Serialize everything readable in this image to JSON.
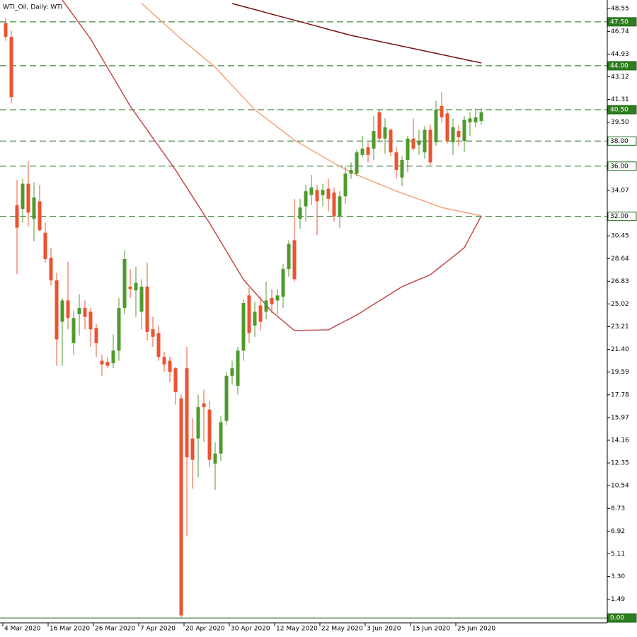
{
  "chart_data": {
    "type": "candlestick",
    "title": "WTI_Oil, Daily:  WTI",
    "categories": [
      "4 Mar 2020",
      null,
      null,
      null,
      null,
      null,
      null,
      null,
      "16 Mar 2020",
      null,
      null,
      null,
      null,
      null,
      null,
      null,
      "26 Mar 2020",
      null,
      null,
      null,
      null,
      null,
      null,
      null,
      "7 Apr 2020",
      null,
      null,
      null,
      null,
      null,
      null,
      null,
      "20 Apr 2020",
      null,
      null,
      null,
      null,
      null,
      null,
      null,
      "30 Apr 2020",
      null,
      null,
      null,
      null,
      null,
      null,
      null,
      "12 May 2020",
      null,
      null,
      null,
      null,
      null,
      null,
      null,
      "22 May 2020",
      null,
      null,
      null,
      null,
      null,
      null,
      null,
      "3 Jun 2020",
      null,
      null,
      null,
      null,
      null,
      null,
      null,
      "15 Jun 2020",
      null,
      null,
      null,
      null,
      null,
      null,
      null,
      "25 Jun 2020",
      null,
      null,
      null,
      null
    ],
    "open": [
      47.4,
      46.3,
      32.9,
      32.6,
      34.6,
      31.8,
      33.2,
      30.7,
      28.7,
      26.9,
      23.6,
      25.3,
      21.9,
      24.2,
      24.7,
      24.4,
      23.1,
      20.5,
      20.4,
      20.3,
      21.3,
      24.7,
      26.4,
      26.1,
      24.4,
      26.4,
      23.0,
      22.7,
      20.8,
      20.5,
      19.9,
      17.5,
      19.9,
      14.3,
      14.3,
      17.1,
      16.6,
      12.3,
      13.1,
      15.7,
      19.3,
      18.5,
      21.3,
      25.7,
      23.3,
      24.9,
      24.4,
      25.5,
      25.3,
      25.6,
      27.8,
      30.1,
      31.8,
      32.8,
      33.7,
      34.1,
      33.7,
      34.2,
      33.9,
      32.0,
      33.6,
      35.4,
      35.4,
      36.9,
      37.5,
      37.4,
      40.3,
      38.2,
      38.9,
      37.1,
      35.1,
      36.5,
      38.2,
      37.7,
      37.1,
      38.9,
      37.9,
      40.8,
      40.2,
      37.9,
      38.8,
      38.0,
      39.5,
      39.5,
      39.6
    ],
    "high": [
      47.8,
      46.8,
      34.9,
      35.0,
      36.4,
      34.7,
      34.5,
      31.5,
      29.5,
      27.5,
      25.5,
      28.4,
      24.5,
      25.8,
      25.3,
      24.7,
      23.4,
      21.0,
      20.8,
      22.6,
      25.5,
      29.3,
      27.8,
      28.0,
      27.0,
      28.3,
      24.0,
      23.3,
      21.2,
      20.8,
      20.0,
      17.8,
      21.6,
      15.9,
      17.8,
      18.2,
      17.3,
      14.0,
      16.1,
      19.6,
      20.5,
      21.6,
      25.4,
      26.3,
      25.2,
      25.6,
      26.8,
      26.2,
      26.2,
      28.2,
      30.1,
      33.4,
      33.4,
      34.5,
      35.3,
      34.5,
      34.6,
      35.0,
      34.3,
      34.0,
      36.0,
      36.3,
      37.3,
      38.4,
      37.9,
      40.0,
      40.5,
      39.8,
      39.0,
      37.5,
      36.8,
      38.4,
      39.8,
      38.9,
      39.2,
      39.3,
      41.2,
      41.9,
      40.4,
      39.8,
      39.3,
      40.0,
      40.3,
      40.6,
      40.6
    ],
    "low": [
      46.0,
      41.0,
      27.4,
      31.5,
      31.2,
      30.0,
      30.8,
      28.3,
      26.5,
      20.1,
      20.1,
      23.0,
      21.0,
      22.5,
      23.0,
      21.6,
      20.8,
      19.3,
      19.9,
      19.9,
      20.5,
      24.2,
      25.5,
      24.0,
      23.0,
      22.1,
      21.6,
      20.5,
      19.6,
      18.8,
      17.0,
      0.0,
      6.5,
      10.3,
      11.2,
      14.0,
      12.0,
      10.2,
      12.5,
      15.4,
      18.6,
      17.8,
      20.5,
      21.9,
      22.4,
      22.9,
      23.8,
      24.3,
      24.2,
      24.7,
      27.2,
      26.8,
      31.0,
      31.6,
      32.9,
      30.5,
      32.8,
      32.4,
      31.6,
      31.1,
      33.0,
      35.0,
      35.2,
      36.7,
      36.3,
      36.5,
      37.9,
      37.0,
      36.8,
      35.0,
      34.4,
      35.5,
      37.2,
      36.9,
      36.6,
      36.1,
      37.6,
      39.5,
      37.8,
      36.9,
      37.6,
      37.1,
      38.4,
      39.1,
      39.3
    ],
    "close": [
      46.3,
      41.5,
      31.1,
      34.6,
      32.3,
      33.5,
      30.9,
      28.6,
      26.9,
      22.2,
      25.3,
      23.9,
      23.9,
      24.7,
      24.0,
      23.0,
      21.9,
      20.2,
      20.1,
      21.3,
      24.7,
      28.6,
      26.2,
      26.7,
      26.4,
      22.8,
      22.4,
      20.8,
      20.2,
      19.6,
      18.0,
      0.2,
      12.8,
      12.6,
      16.8,
      16.8,
      12.6,
      13.1,
      15.6,
      19.3,
      19.9,
      21.3,
      25.1,
      22.7,
      24.4,
      23.6,
      25.3,
      25.0,
      25.7,
      27.8,
      29.8,
      27.0,
      32.7,
      34.0,
      34.3,
      33.2,
      34.1,
      33.4,
      32.0,
      33.6,
      35.4,
      35.7,
      37.1,
      37.4,
      36.9,
      38.8,
      38.2,
      39.1,
      37.1,
      35.7,
      36.5,
      38.2,
      37.4,
      38.0,
      38.9,
      36.3,
      40.5,
      39.9,
      38.0,
      39.1,
      38.3,
      39.7,
      39.8,
      39.9,
      40.3
    ],
    "up_color": "#4f9a2c",
    "down_color": "#ec5330",
    "ma_lines": [
      {
        "color": "#7b1010",
        "values": [
          null,
          null,
          null,
          null,
          null,
          null,
          null,
          null,
          null,
          null,
          null,
          null,
          null,
          null,
          null,
          null,
          null,
          null,
          null,
          null,
          null,
          null,
          null,
          null,
          null,
          null,
          null,
          null,
          null,
          null,
          null,
          null,
          null,
          null,
          null,
          null,
          null,
          null,
          null,
          null,
          48.96,
          48.84,
          48.72,
          48.6,
          48.48,
          48.36,
          48.23,
          48.11,
          47.99,
          47.87,
          47.75,
          47.63,
          47.51,
          47.39,
          47.27,
          47.15,
          47.03,
          46.9,
          46.78,
          46.66,
          46.54,
          46.42,
          46.32,
          46.23,
          46.13,
          46.04,
          45.94,
          45.85,
          45.75,
          45.66,
          45.56,
          45.47,
          45.37,
          45.28,
          45.18,
          45.08,
          44.99,
          44.89,
          44.8,
          44.7,
          44.6,
          44.51,
          44.41,
          44.32,
          44.22
        ]
      },
      {
        "color": "#f5a37a",
        "values": [
          null,
          null,
          null,
          null,
          null,
          null,
          null,
          null,
          null,
          null,
          null,
          null,
          null,
          null,
          null,
          null,
          null,
          null,
          null,
          null,
          null,
          null,
          null,
          null,
          48.96,
          48.56,
          48.15,
          47.75,
          47.35,
          46.95,
          46.54,
          46.14,
          45.76,
          45.39,
          45.01,
          44.63,
          44.26,
          43.88,
          43.4,
          42.91,
          42.43,
          41.95,
          41.47,
          40.98,
          40.5,
          40.15,
          39.81,
          39.46,
          39.11,
          38.77,
          38.42,
          38.07,
          37.81,
          37.55,
          37.29,
          37.03,
          36.76,
          36.5,
          36.24,
          35.98,
          35.76,
          35.53,
          35.31,
          35.12,
          34.94,
          34.75,
          34.57,
          34.38,
          34.2,
          34.01,
          33.85,
          33.69,
          33.52,
          33.36,
          33.2,
          33.04,
          32.87,
          32.71,
          32.61,
          32.52,
          32.42,
          32.33,
          32.23,
          32.14,
          32.04
        ]
      },
      {
        "color": "#c24a4a",
        "values": [
          null,
          null,
          null,
          null,
          null,
          null,
          null,
          null,
          null,
          null,
          49.24,
          48.62,
          48.0,
          47.38,
          46.76,
          46.14,
          45.37,
          44.61,
          43.84,
          43.08,
          42.31,
          41.55,
          40.78,
          40.15,
          39.51,
          38.88,
          38.24,
          37.61,
          36.97,
          36.34,
          35.7,
          34.99,
          34.29,
          33.58,
          32.88,
          32.17,
          31.47,
          30.72,
          29.97,
          29.22,
          28.46,
          27.71,
          26.96,
          26.45,
          25.94,
          25.44,
          24.93,
          24.42,
          24.04,
          23.66,
          23.28,
          22.9,
          22.91,
          22.92,
          22.93,
          22.94,
          22.95,
          22.96,
          23.2,
          23.43,
          23.67,
          23.9,
          24.14,
          24.42,
          24.71,
          24.99,
          25.27,
          25.55,
          25.83,
          26.12,
          26.4,
          26.59,
          26.78,
          26.97,
          27.16,
          27.35,
          27.71,
          28.07,
          28.42,
          28.78,
          29.14,
          29.5,
          30.35,
          31.19,
          32.04
        ]
      }
    ],
    "levels": [
      {
        "value": 47.5,
        "label": "47.50",
        "background": "#2e7d1e",
        "text_color": "#ffffff",
        "dashed": true
      },
      {
        "value": 44,
        "label": "44.00",
        "background": "#2e7d1e",
        "text_color": "#ffffff",
        "dashed": true
      },
      {
        "value": 40.5,
        "label": "40.50",
        "background": "#2e7d1e",
        "text_color": "#ffffff",
        "dashed": true
      },
      {
        "value": 38,
        "label": "38.00",
        "background": "#ffffff",
        "text_color": "#000000",
        "dashed": true
      },
      {
        "value": 36,
        "label": "36.00",
        "background": "#ffffff",
        "text_color": "#000000",
        "dashed": true
      },
      {
        "value": 32,
        "label": "32.00",
        "background": "#ffffff",
        "text_color": "#000000",
        "dashed": true
      },
      {
        "value": 0,
        "label": "0.00",
        "background": "#2e7d1e",
        "text_color": "#ffffff",
        "dashed": false
      }
    ],
    "level_color": "#1e6b1e",
    "ylim": [
      -0.39,
      49.24
    ],
    "yticks": [
      48.55,
      46.74,
      44.93,
      43.12,
      41.31,
      {
        "value": 39.5,
        "label": "39.50"
      },
      34.07,
      30.45,
      28.64,
      26.83,
      25.02,
      23.21,
      {
        "value": 21.4,
        "label": "21.40"
      },
      19.59,
      17.78,
      15.97,
      14.16,
      12.35,
      10.54,
      8.73,
      6.92,
      5.11,
      {
        "value": 3.3,
        "label": "3.30"
      },
      1.49
    ]
  }
}
